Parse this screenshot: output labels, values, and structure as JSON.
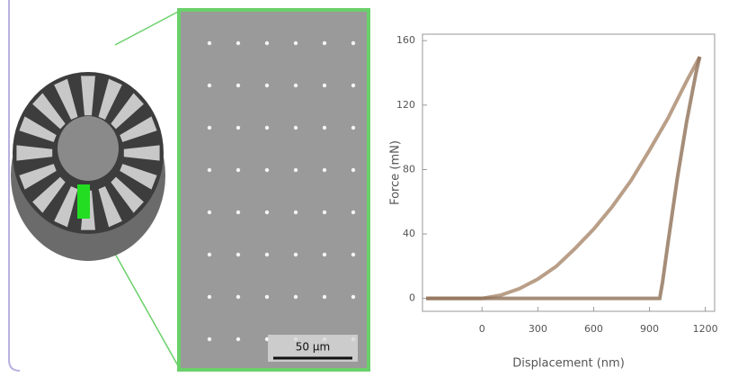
{
  "scale_bar": "50 µm",
  "chart_data": {
    "type": "line",
    "x_label": "Displacement (nm)",
    "y_label": "Force (mN)",
    "xlim": [
      -320,
      1250
    ],
    "ylim": [
      -8,
      164
    ],
    "xticks": [
      0,
      300,
      600,
      900,
      1200
    ],
    "yticks": [
      0,
      40,
      80,
      120,
      160
    ],
    "series": [
      {
        "color": "#a8876a",
        "x": [
          -300,
          -200,
          -100,
          0,
          100,
          200,
          300,
          400,
          500,
          600,
          700,
          800,
          900,
          1000,
          1100,
          1170
        ],
        "values": [
          0,
          0,
          0,
          0,
          2,
          6,
          12,
          20,
          31,
          43,
          57,
          73,
          92,
          112,
          135,
          150
        ]
      },
      {
        "color": "#8f7058",
        "x": [
          1170,
          1150,
          1100,
          1050,
          1000,
          970,
          955,
          900,
          0,
          -300
        ],
        "values": [
          150,
          140,
          110,
          75,
          35,
          10,
          0,
          0,
          0,
          0
        ]
      }
    ]
  }
}
